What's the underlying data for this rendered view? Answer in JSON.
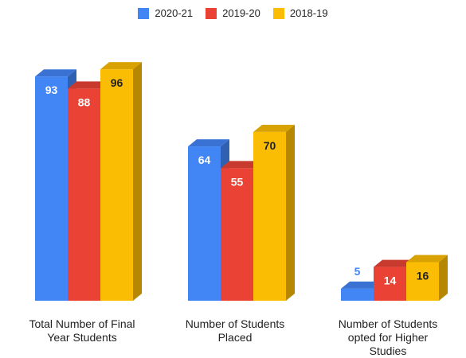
{
  "chart_data": {
    "type": "bar",
    "categories": [
      "Total Number of Final Year Students",
      "Number of Students Placed",
      "Number of Students opted for Higher Studies"
    ],
    "category_lines": [
      [
        "Total Number of Final",
        "Year Students"
      ],
      [
        "Number of Students",
        "Placed"
      ],
      [
        "Number of Students",
        "opted for Higher",
        "Studies"
      ]
    ],
    "series": [
      {
        "name": "2020-21",
        "values": [
          93,
          64,
          5
        ],
        "color": "#4285F4",
        "label_color": "#ffffff"
      },
      {
        "name": "2019-20",
        "values": [
          88,
          55,
          14
        ],
        "color": "#EA4335",
        "label_color": "#ffffff"
      },
      {
        "name": "2018-19",
        "values": [
          96,
          70,
          16
        ],
        "color": "#FBBC04",
        "label_color": "#222222"
      }
    ],
    "ylim": [
      0,
      100
    ],
    "grid": false,
    "legend": "top",
    "style": "3d"
  }
}
